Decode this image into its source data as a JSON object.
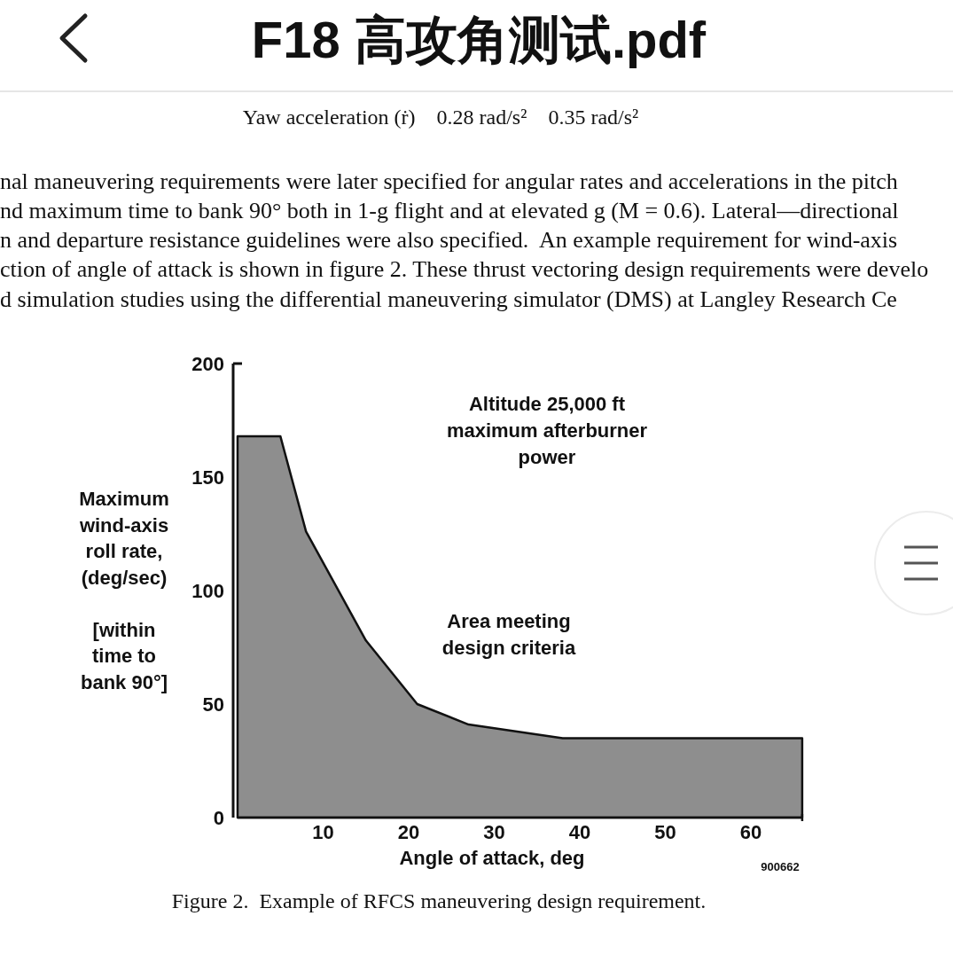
{
  "chart_data": {
    "type": "area",
    "title": "Figure 2.  Example of RFCS maneuvering design requirement.",
    "xlabel": "Angle of attack, deg",
    "ylabel": "Maximum\nwind-axis\nroll rate,\n(deg/sec)\n\n[within\ntime to\nbank 90°]",
    "x": [
      0,
      5,
      8,
      15,
      21,
      27,
      38,
      66
    ],
    "values": [
      168,
      168,
      126,
      78,
      50,
      41,
      35,
      35
    ],
    "color": "#8e8e8e",
    "xlim": [
      0,
      66
    ],
    "ylim": [
      0,
      200
    ],
    "xticks": [
      10,
      20,
      30,
      40,
      50,
      60
    ],
    "yticks": [
      0,
      50,
      100,
      150,
      200
    ],
    "annotations": [
      "F18 高攻角测试.pdf",
      "Yaw acceleration (ṙ)    0.28 rad/s²    0.35 rad/s²",
      "nal maneuvering requirements were later specified for angular rates and accelerations in the pitch",
      "nd maximum time to bank 90° both in 1-g flight and at elevated g (M = 0.6). Lateral—directional",
      "n and departure resistance guidelines were also specified.  An example requirement for wind-axis",
      "ction of angle of attack is shown in figure 2. These thrust vectoring design requirements were develo",
      "d simulation studies using the differential maneuvering simulator (DMS) at Langley Research Ce",
      "Altitude 25,000 ft\nmaximum afterburner\npower",
      "Area meeting\ndesign criteria",
      "900662"
    ]
  }
}
